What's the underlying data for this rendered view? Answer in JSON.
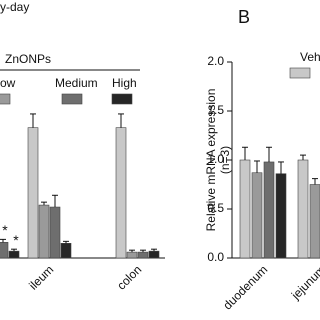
{
  "chart_data": [
    {
      "type": "bar",
      "title": "y-day",
      "legend_title": "ZnONPs",
      "categories": [
        null,
        "ileum",
        "colon"
      ],
      "ylim": [
        0,
        2
      ],
      "annotations": [
        "*",
        "*"
      ],
      "series": [
        {
          "color": "#c8c8c8",
          "values": [
            null,
            1.33,
            1.33
          ],
          "errors": [
            null,
            0.14,
            0.14
          ]
        },
        {
          "name": "ow",
          "color": "#9a9a9a",
          "values": [
            null,
            0.54,
            0.06
          ],
          "errors": [
            null,
            0.03,
            0.02
          ]
        },
        {
          "name": "Medium",
          "color": "#6e6e6e",
          "values": [
            0.16,
            0.52,
            0.06
          ],
          "errors": [
            0.03,
            0.12,
            0.02
          ]
        },
        {
          "name": "High",
          "color": "#262626",
          "values": [
            0.07,
            0.15,
            0.07
          ],
          "errors": [
            0.02,
            0.02,
            0.02
          ]
        }
      ]
    },
    {
      "type": "bar",
      "panel_label": "B",
      "ylabel": "Relative mRNA expression",
      "ylabel_note": "(n=3)",
      "categories": [
        "duodenum",
        "jejunum"
      ],
      "ylim": [
        0,
        2
      ],
      "yticks": [
        {
          "value": 0,
          "label": "0.0"
        },
        {
          "value": 0.5,
          "label": "0.5"
        },
        {
          "value": 1,
          "label": "1.0"
        },
        {
          "value": 1.5,
          "label": "1.5"
        },
        {
          "value": 2,
          "label": "2.0"
        }
      ],
      "series": [
        {
          "name": "Vehicle",
          "color": "#c8c8c8",
          "values": [
            1.0,
            1.0
          ],
          "errors": [
            0.13,
            0.05
          ]
        },
        {
          "color": "#9a9a9a",
          "values": [
            0.87,
            0.75
          ],
          "errors": [
            0.12,
            0.06
          ]
        },
        {
          "color": "#6e6e6e",
          "values": [
            0.98,
            null
          ],
          "errors": [
            0.15,
            null
          ]
        },
        {
          "color": "#262626",
          "values": [
            0.86,
            null
          ],
          "errors": [
            0.12,
            null
          ]
        }
      ]
    }
  ]
}
